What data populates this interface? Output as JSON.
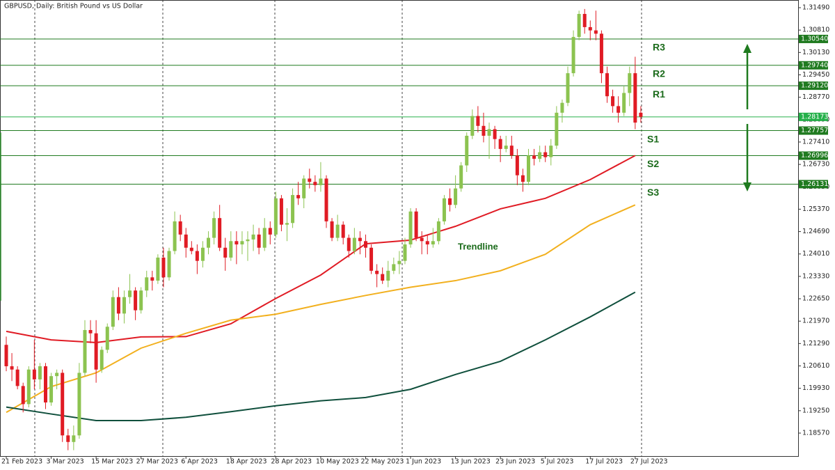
{
  "chart_data": {
    "type": "candlestick",
    "title": "GBPUSD, Daily:  British Pound vs US Dollar",
    "up_color": "#8cc350",
    "down_color": "#e01b24",
    "categories": [
      "21 Feb 2023",
      null,
      null,
      null,
      null,
      null,
      null,
      null,
      "3 Mar 2023",
      null,
      null,
      null,
      null,
      null,
      null,
      null,
      "15 Mar 2023",
      null,
      null,
      null,
      null,
      null,
      null,
      null,
      "27 Mar 2023",
      null,
      null,
      null,
      null,
      null,
      null,
      null,
      "6 Apr 2023",
      null,
      null,
      null,
      null,
      null,
      null,
      null,
      "18 Apr 2023",
      null,
      null,
      null,
      null,
      null,
      null,
      null,
      "28 Apr 2023",
      null,
      null,
      null,
      null,
      null,
      null,
      null,
      "10 May 2023",
      null,
      null,
      null,
      null,
      null,
      null,
      null,
      "22 May 2023",
      null,
      null,
      null,
      null,
      null,
      null,
      null,
      "1 Jun 2023",
      null,
      null,
      null,
      null,
      null,
      null,
      null,
      "13 Jun 2023",
      null,
      null,
      null,
      null,
      null,
      null,
      null,
      "23 Jun 2023",
      null,
      null,
      null,
      null,
      null,
      null,
      null,
      "5 Jul 2023",
      null,
      null,
      null,
      null,
      null,
      null,
      null,
      "17 Jul 2023",
      null,
      null,
      null,
      null,
      null,
      null,
      null,
      "27 Jul 2023",
      null
    ],
    "candles": [
      [
        1.2125,
        1.215,
        1.2045,
        1.206
      ],
      [
        1.206,
        1.21,
        1.2015,
        1.205
      ],
      [
        1.205,
        1.206,
        1.199,
        1.2
      ],
      [
        1.2,
        1.201,
        1.192,
        1.1945
      ],
      [
        1.1945,
        1.206,
        1.1935,
        1.205
      ],
      [
        1.205,
        1.214,
        1.199,
        1.202
      ],
      [
        1.202,
        1.207,
        1.199,
        1.206
      ],
      [
        1.206,
        1.207,
        1.193,
        1.195
      ],
      [
        1.195,
        1.204,
        1.194,
        1.203
      ],
      [
        1.203,
        1.205,
        1.199,
        1.204
      ],
      [
        1.204,
        1.205,
        1.183,
        1.185
      ],
      [
        1.185,
        1.187,
        1.1805,
        1.183
      ],
      [
        1.183,
        1.188,
        1.1805,
        1.185
      ],
      [
        1.185,
        1.207,
        1.184,
        1.204
      ],
      [
        1.204,
        1.22,
        1.203,
        1.217
      ],
      [
        1.217,
        1.22,
        1.213,
        1.216
      ],
      [
        1.216,
        1.22,
        1.201,
        1.205
      ],
      [
        1.205,
        1.212,
        1.204,
        1.211
      ],
      [
        1.211,
        1.219,
        1.21,
        1.218
      ],
      [
        1.218,
        1.229,
        1.217,
        1.227
      ],
      [
        1.227,
        1.23,
        1.22,
        1.222
      ],
      [
        1.222,
        1.229,
        1.219,
        1.227
      ],
      [
        1.227,
        1.234,
        1.225,
        1.229
      ],
      [
        1.229,
        1.23,
        1.22,
        1.223
      ],
      [
        1.223,
        1.23,
        1.222,
        1.229
      ],
      [
        1.229,
        1.235,
        1.227,
        1.233
      ],
      [
        1.233,
        1.235,
        1.229,
        1.232
      ],
      [
        1.232,
        1.24,
        1.231,
        1.239
      ],
      [
        1.239,
        1.242,
        1.23,
        1.233
      ],
      [
        1.233,
        1.242,
        1.232,
        1.241
      ],
      [
        1.241,
        1.253,
        1.24,
        1.25
      ],
      [
        1.25,
        1.252,
        1.244,
        1.246
      ],
      [
        1.246,
        1.248,
        1.239,
        1.242
      ],
      [
        1.242,
        1.244,
        1.24,
        1.241
      ],
      [
        1.241,
        1.243,
        1.234,
        1.238
      ],
      [
        1.238,
        1.244,
        1.236,
        1.242
      ],
      [
        1.242,
        1.247,
        1.24,
        1.245
      ],
      [
        1.245,
        1.253,
        1.243,
        1.251
      ],
      [
        1.251,
        1.255,
        1.241,
        1.242
      ],
      [
        1.242,
        1.245,
        1.235,
        1.239
      ],
      [
        1.239,
        1.247,
        1.238,
        1.244
      ],
      [
        1.244,
        1.247,
        1.237,
        1.243
      ],
      [
        1.243,
        1.247,
        1.24,
        1.244
      ],
      [
        1.244,
        1.247,
        1.238,
        1.2445
      ],
      [
        1.2445,
        1.249,
        1.241,
        1.246
      ],
      [
        1.246,
        1.248,
        1.24,
        1.242
      ],
      [
        1.242,
        1.251,
        1.241,
        1.248
      ],
      [
        1.248,
        1.25,
        1.243,
        1.246
      ],
      [
        1.246,
        1.259,
        1.245,
        1.257
      ],
      [
        1.257,
        1.258,
        1.247,
        1.249
      ],
      [
        1.249,
        1.254,
        1.244,
        1.2495
      ],
      [
        1.2495,
        1.26,
        1.248,
        1.258
      ],
      [
        1.258,
        1.262,
        1.255,
        1.257
      ],
      [
        1.257,
        1.264,
        1.254,
        1.263
      ],
      [
        1.263,
        1.266,
        1.26,
        1.262
      ],
      [
        1.262,
        1.264,
        1.259,
        1.261
      ],
      [
        1.261,
        1.268,
        1.259,
        1.263
      ],
      [
        1.263,
        1.264,
        1.248,
        1.25
      ],
      [
        1.25,
        1.251,
        1.244,
        1.245
      ],
      [
        1.245,
        1.252,
        1.244,
        1.249
      ],
      [
        1.249,
        1.25,
        1.243,
        1.245
      ],
      [
        1.245,
        1.246,
        1.239,
        1.241
      ],
      [
        1.241,
        1.248,
        1.24,
        1.245
      ],
      [
        1.245,
        1.247,
        1.24,
        1.244
      ],
      [
        1.244,
        1.246,
        1.239,
        1.242
      ],
      [
        1.242,
        1.243,
        1.234,
        1.235
      ],
      [
        1.235,
        1.237,
        1.23,
        1.234
      ],
      [
        1.234,
        1.236,
        1.231,
        1.232
      ],
      [
        1.232,
        1.238,
        1.23,
        1.235
      ],
      [
        1.235,
        1.239,
        1.234,
        1.237
      ],
      [
        1.237,
        1.241,
        1.234,
        1.238
      ],
      [
        1.238,
        1.245,
        1.237,
        1.243
      ],
      [
        1.243,
        1.254,
        1.242,
        1.253
      ],
      [
        1.253,
        1.254,
        1.244,
        1.245
      ],
      [
        1.245,
        1.247,
        1.24,
        1.244
      ],
      [
        1.244,
        1.246,
        1.24,
        1.243
      ],
      [
        1.243,
        1.248,
        1.242,
        1.244
      ],
      [
        1.244,
        1.251,
        1.243,
        1.25
      ],
      [
        1.25,
        1.258,
        1.249,
        1.257
      ],
      [
        1.257,
        1.26,
        1.253,
        1.255
      ],
      [
        1.255,
        1.264,
        1.254,
        1.26
      ],
      [
        1.26,
        1.268,
        1.259,
        1.267
      ],
      [
        1.267,
        1.277,
        1.265,
        1.276
      ],
      [
        1.276,
        1.284,
        1.275,
        1.282
      ],
      [
        1.282,
        1.285,
        1.277,
        1.279
      ],
      [
        1.279,
        1.283,
        1.274,
        1.276
      ],
      [
        1.276,
        1.28,
        1.269,
        1.278
      ],
      [
        1.278,
        1.279,
        1.272,
        1.275
      ],
      [
        1.275,
        1.276,
        1.268,
        1.272
      ],
      [
        1.272,
        1.276,
        1.271,
        1.273
      ],
      [
        1.273,
        1.276,
        1.269,
        1.27
      ],
      [
        1.27,
        1.272,
        1.261,
        1.264
      ],
      [
        1.264,
        1.266,
        1.259,
        1.262
      ],
      [
        1.262,
        1.272,
        1.261,
        1.27
      ],
      [
        1.27,
        1.272,
        1.267,
        1.269
      ],
      [
        1.269,
        1.273,
        1.268,
        1.271
      ],
      [
        1.271,
        1.273,
        1.268,
        1.2695
      ],
      [
        1.2695,
        1.275,
        1.267,
        1.273
      ],
      [
        1.273,
        1.285,
        1.272,
        1.283
      ],
      [
        1.283,
        1.287,
        1.28,
        1.286
      ],
      [
        1.286,
        1.297,
        1.285,
        1.295
      ],
      [
        1.295,
        1.308,
        1.294,
        1.306
      ],
      [
        1.306,
        1.314,
        1.305,
        1.313
      ],
      [
        1.313,
        1.3145,
        1.307,
        1.309
      ],
      [
        1.309,
        1.311,
        1.305,
        1.308
      ],
      [
        1.308,
        1.314,
        1.305,
        1.307
      ],
      [
        1.307,
        1.308,
        1.292,
        1.295
      ],
      [
        1.295,
        1.297,
        1.286,
        1.288
      ],
      [
        1.288,
        1.29,
        1.283,
        1.285
      ],
      [
        1.285,
        1.288,
        1.28,
        1.283
      ],
      [
        1.283,
        1.291,
        1.282,
        1.289
      ],
      [
        1.289,
        1.297,
        1.285,
        1.295
      ],
      [
        1.295,
        1.3,
        1.278,
        1.28
      ],
      [
        1.283,
        1.285,
        1.28,
        1.28173
      ]
    ],
    "moving_averages": [
      {
        "color": "#e01b24",
        "x": [
          "21 Feb 2023",
          "3 Mar 2023",
          "15 Mar 2023",
          "27 Mar 2023",
          "6 Apr 2023",
          "18 Apr 2023",
          "28 Apr 2023",
          "10 May 2023",
          "22 May 2023",
          "1 Jun 2023",
          "13 Jun 2023",
          "23 Jun 2023",
          "5 Jul 2023",
          "17 Jul 2023",
          "27 Jul 2023"
        ],
        "values": [
          1.2166,
          1.214,
          1.2132,
          1.2149,
          1.215,
          1.2189,
          1.2266,
          1.2337,
          1.2432,
          1.2443,
          1.2485,
          1.2538,
          1.257,
          1.2627,
          1.27
        ]
      },
      {
        "color": "#f2b01e",
        "x": [
          "21 Feb 2023",
          "3 Mar 2023",
          "15 Mar 2023",
          "27 Mar 2023",
          "6 Apr 2023",
          "18 Apr 2023",
          "28 Apr 2023",
          "10 May 2023",
          "22 May 2023",
          "1 Jun 2023",
          "13 Jun 2023",
          "23 Jun 2023",
          "5 Jul 2023",
          "17 Jul 2023",
          "27 Jul 2023"
        ],
        "values": [
          1.192,
          1.1998,
          1.204,
          1.2115,
          1.216,
          1.22,
          1.2218,
          1.2248,
          1.2275,
          1.23,
          1.232,
          1.235,
          1.24,
          1.249,
          1.255
        ]
      },
      {
        "color": "#0f4f3c",
        "x": [
          "21 Feb 2023",
          "3 Mar 2023",
          "15 Mar 2023",
          "27 Mar 2023",
          "6 Apr 2023",
          "18 Apr 2023",
          "28 Apr 2023",
          "10 May 2023",
          "22 May 2023",
          "1 Jun 2023",
          "13 Jun 2023",
          "23 Jun 2023",
          "5 Jul 2023",
          "17 Jul 2023",
          "27 Jul 2023"
        ],
        "values": [
          1.1936,
          1.1915,
          1.1895,
          1.1895,
          1.1905,
          1.1922,
          1.194,
          1.1955,
          1.1965,
          1.199,
          1.2035,
          1.2075,
          1.214,
          1.221,
          1.2285
        ]
      }
    ],
    "trendline": {
      "label": "Trendline",
      "color": "#2e8b2e",
      "x": [
        "18 May 2023",
        "26 Jul 2023"
      ],
      "values": [
        1.2259,
        1.277
      ]
    },
    "levels": [
      {
        "name": "R3",
        "value": 1.3054,
        "label": "1.30540"
      },
      {
        "name": "R2",
        "value": 1.2974,
        "label": "1.29740"
      },
      {
        "name": "R1",
        "value": 1.2912,
        "label": "1.29120"
      },
      {
        "name": "S1",
        "value": 1.27757,
        "label": "1.27757"
      },
      {
        "name": "S2",
        "value": 1.26996,
        "label": "1.26996"
      },
      {
        "name": "S3",
        "value": 1.26131,
        "label": "1.26131"
      }
    ],
    "level_color": "#1f7a1f",
    "current_price": {
      "value": 1.28173,
      "label": "1.28173",
      "color": "#25b04a"
    },
    "ylim": [
      1.17872,
      1.31723
    ],
    "yticks": [
      {
        "value": 1.3149,
        "label": "1.31490"
      },
      {
        "value": 1.3081,
        "label": "1.30810"
      },
      {
        "value": 1.3013,
        "label": "1.30130"
      },
      {
        "value": 1.2945,
        "label": "1.29450"
      },
      {
        "value": 1.2877,
        "label": "1.28770"
      },
      {
        "value": 1.2809,
        "label": "1.28090"
      },
      {
        "value": 1.2741,
        "label": "1.27410"
      },
      {
        "value": 1.2673,
        "label": "1.26730"
      },
      {
        "value": 1.2605,
        "label": "1.26050"
      },
      {
        "value": 1.2537,
        "label": "1.25370"
      },
      {
        "value": 1.2469,
        "label": "1.24690"
      },
      {
        "value": 1.2401,
        "label": "1.24010"
      },
      {
        "value": 1.2333,
        "label": "1.23330"
      },
      {
        "value": 1.2265,
        "label": "1.22650"
      },
      {
        "value": 1.2197,
        "label": "1.21970"
      },
      {
        "value": 1.2129,
        "label": "1.21290"
      },
      {
        "value": 1.2061,
        "label": "1.20610"
      },
      {
        "value": 1.1993,
        "label": "1.19930"
      },
      {
        "value": 1.1925,
        "label": "1.19250"
      },
      {
        "value": 1.1857,
        "label": "1.18570"
      }
    ],
    "grid": false
  }
}
